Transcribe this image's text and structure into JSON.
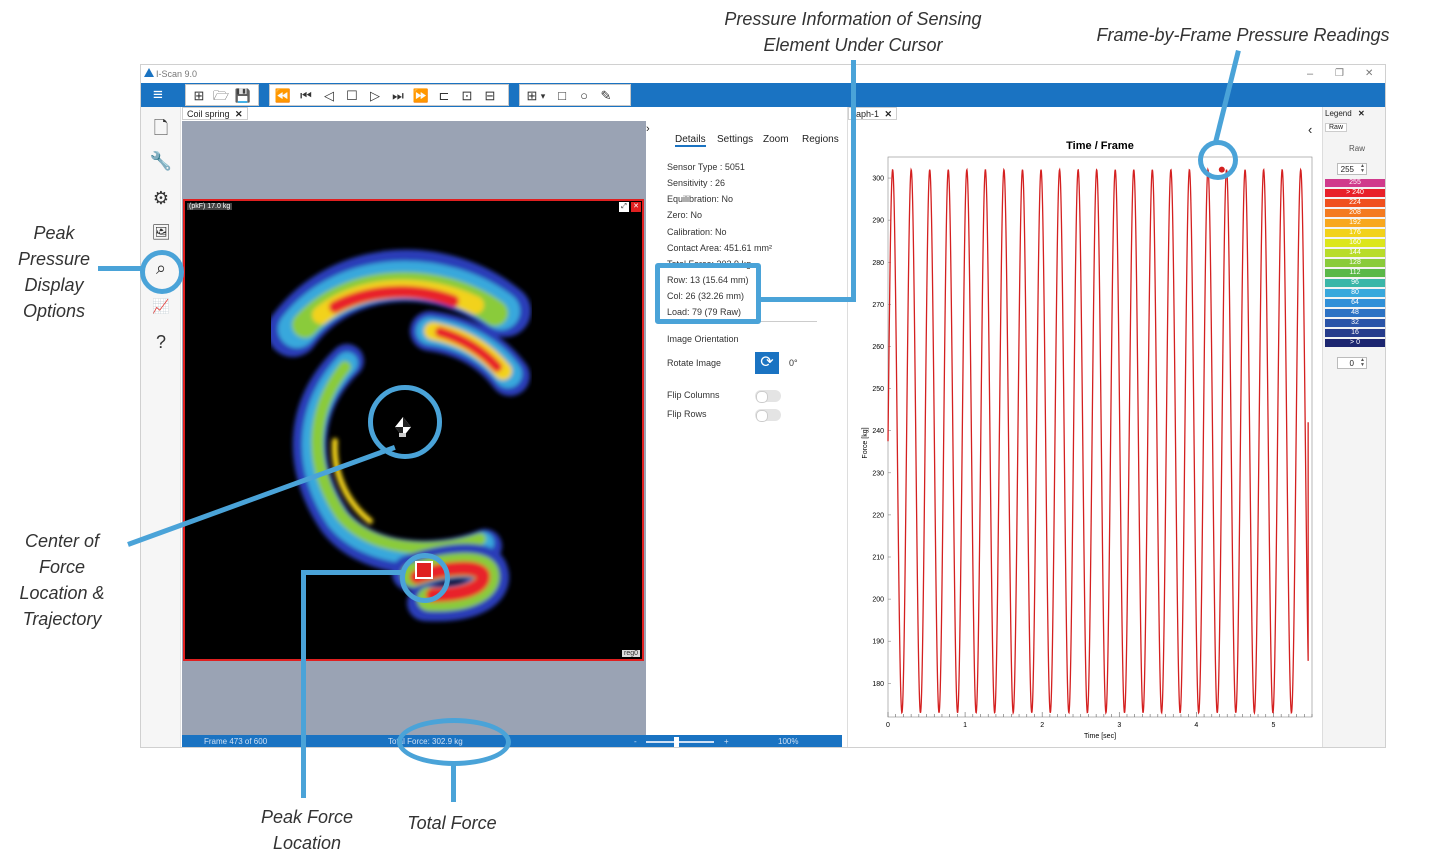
{
  "callouts": {
    "cursor_info": [
      "Pressure Information of Sensing",
      "Element Under Cursor"
    ],
    "frame_readings": "Frame-by-Frame Pressure Readings",
    "peak_pressure": [
      "Peak",
      "Pressure",
      "Display",
      "Options"
    ],
    "center_of_force": [
      "Center of",
      "Force",
      "Location &",
      "Trajectory"
    ],
    "peak_force": [
      "Peak Force",
      "Location"
    ],
    "total_force": "Total Force"
  },
  "app": {
    "title": "I-Scan 9.0",
    "accent": "#1a73c2",
    "window_controls": [
      "–",
      "❐",
      "✕"
    ]
  },
  "toolbar": {
    "menu_icon": "≡",
    "file_icons": [
      "⊞",
      "🗁",
      "💾"
    ],
    "playback_icons": [
      "⏪",
      "⏮",
      "◁",
      "☐",
      "▷",
      "⏭",
      "⏩",
      "⊏",
      "⊡",
      "⊟"
    ],
    "region_icons": [
      "⊞",
      "▾",
      "□",
      "○",
      "✎"
    ]
  },
  "sidebar": {
    "icons": [
      {
        "name": "new-file-icon",
        "glyph": "🗋"
      },
      {
        "name": "wrench-icon",
        "glyph": "🔧"
      },
      {
        "name": "gear-icon",
        "glyph": "⚙"
      },
      {
        "name": "image-icon",
        "glyph": "🖼"
      },
      {
        "name": "peak-pressure-icon",
        "glyph": "⌕"
      },
      {
        "name": "graph-icon",
        "glyph": "📈"
      },
      {
        "name": "help-icon",
        "glyph": "?"
      }
    ]
  },
  "sensor_pane": {
    "tab_label": "Coil spring",
    "peak_label": "(pkF) 17.0 kg",
    "region_label": "reg0"
  },
  "statusbar": {
    "frame": "Frame 473 of 600",
    "total_force": "Total Force: 302.9 kg",
    "zoom_minus": "-",
    "zoom_plus": "+",
    "zoom": "100%",
    "zoom_fraction": 0.45
  },
  "details": {
    "tabs": [
      "Details",
      "Settings",
      "Zoom",
      "Regions"
    ],
    "sensor_type": "Sensor Type : 5051",
    "sensitivity": "Sensitivity : 26",
    "equilibration": "Equilibration: No",
    "zero": "Zero: No",
    "calibration": "Calibration: No",
    "contact_area": "Contact Area: 451.61 mm²",
    "total_force": "Total Force: 302.9 kg",
    "row": "Row: 13 (15.64 mm)",
    "col": "Col: 26 (32.26 mm)",
    "load": "Load: 79 (79 Raw)",
    "orientation_heading": "Image Orientation",
    "rotate_label": "Rotate Image",
    "rotate_value": "0°",
    "flip_columns": "Flip Columns",
    "flip_rows": "Flip Rows"
  },
  "graph": {
    "tab_label": "raph-1",
    "nav_back": "‹"
  },
  "chart_data": {
    "type": "line",
    "title": "Time / Frame",
    "xlabel": "Time [sec]",
    "ylabel": "Force [kg]",
    "xlim": [
      0,
      5.5
    ],
    "ylim": [
      172,
      305
    ],
    "xticks": [
      0,
      1,
      2,
      3,
      4,
      5
    ],
    "yticks": [
      180,
      190,
      200,
      210,
      220,
      230,
      240,
      250,
      260,
      270,
      280,
      290,
      300
    ],
    "series": [
      {
        "color": "#d42020",
        "min": 173,
        "max": 302,
        "cycles": 23,
        "end_time": 5.45,
        "end_value": 242
      }
    ],
    "marker": {
      "x": 4.33,
      "y": 302
    },
    "grid": false
  },
  "legend": {
    "tab_label": "Legend",
    "raw_tab": "Raw",
    "heading": "Raw",
    "max_value": "255",
    "min_value": "0",
    "levels": [
      {
        "label": "255",
        "color": "#d03a8c"
      },
      {
        "label": "> 240",
        "color": "#e8202a"
      },
      {
        "label": "224",
        "color": "#f0501e"
      },
      {
        "label": "208",
        "color": "#f47b20"
      },
      {
        "label": "192",
        "color": "#f8a81e"
      },
      {
        "label": "176",
        "color": "#f2d21a"
      },
      {
        "label": "160",
        "color": "#dce61c"
      },
      {
        "label": "144",
        "color": "#b8dc2a"
      },
      {
        "label": "128",
        "color": "#8acb3a"
      },
      {
        "label": "112",
        "color": "#5ab848"
      },
      {
        "label": "96",
        "color": "#3ab6a8"
      },
      {
        "label": "80",
        "color": "#38a8dc"
      },
      {
        "label": "64",
        "color": "#3090d8"
      },
      {
        "label": "48",
        "color": "#2c72c4"
      },
      {
        "label": "32",
        "color": "#2a54a8"
      },
      {
        "label": "16",
        "color": "#263c8c"
      },
      {
        "label": "> 0",
        "color": "#1c2670"
      }
    ]
  }
}
